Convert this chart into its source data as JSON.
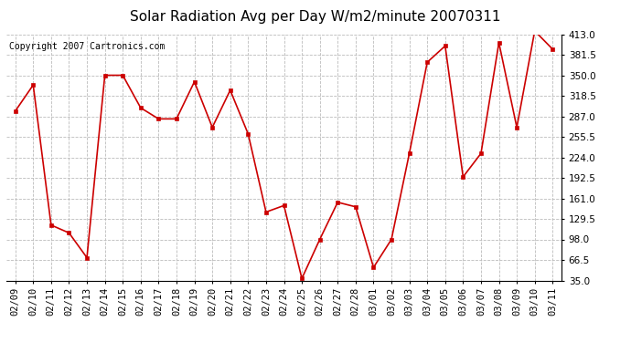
{
  "title": "Solar Radiation Avg per Day W/m2/minute 20070311",
  "copyright": "Copyright 2007 Cartronics.com",
  "labels": [
    "02/09",
    "02/10",
    "02/11",
    "02/12",
    "02/13",
    "02/14",
    "02/15",
    "02/16",
    "02/17",
    "02/18",
    "02/19",
    "02/20",
    "02/21",
    "02/22",
    "02/23",
    "02/24",
    "02/25",
    "02/26",
    "02/27",
    "02/28",
    "03/01",
    "03/02",
    "03/03",
    "03/04",
    "03/05",
    "03/06",
    "03/07",
    "03/08",
    "03/09",
    "03/10",
    "03/11"
  ],
  "values": [
    295,
    335,
    120,
    108,
    70,
    350,
    350,
    300,
    283,
    283,
    340,
    270,
    327,
    260,
    140,
    150,
    38,
    98,
    155,
    148,
    55,
    98,
    230,
    370,
    395,
    194,
    230,
    400,
    270,
    418,
    390
  ],
  "line_color": "#cc0000",
  "marker_color": "#cc0000",
  "bg_color": "#ffffff",
  "plot_bg_color": "#ffffff",
  "grid_color": "#bbbbbb",
  "ylim": [
    35.0,
    413.0
  ],
  "yticks": [
    35.0,
    66.5,
    98.0,
    129.5,
    161.0,
    192.5,
    224.0,
    255.5,
    287.0,
    318.5,
    350.0,
    381.5,
    413.0
  ],
  "title_fontsize": 11,
  "copyright_fontsize": 7,
  "tick_fontsize": 7.5
}
